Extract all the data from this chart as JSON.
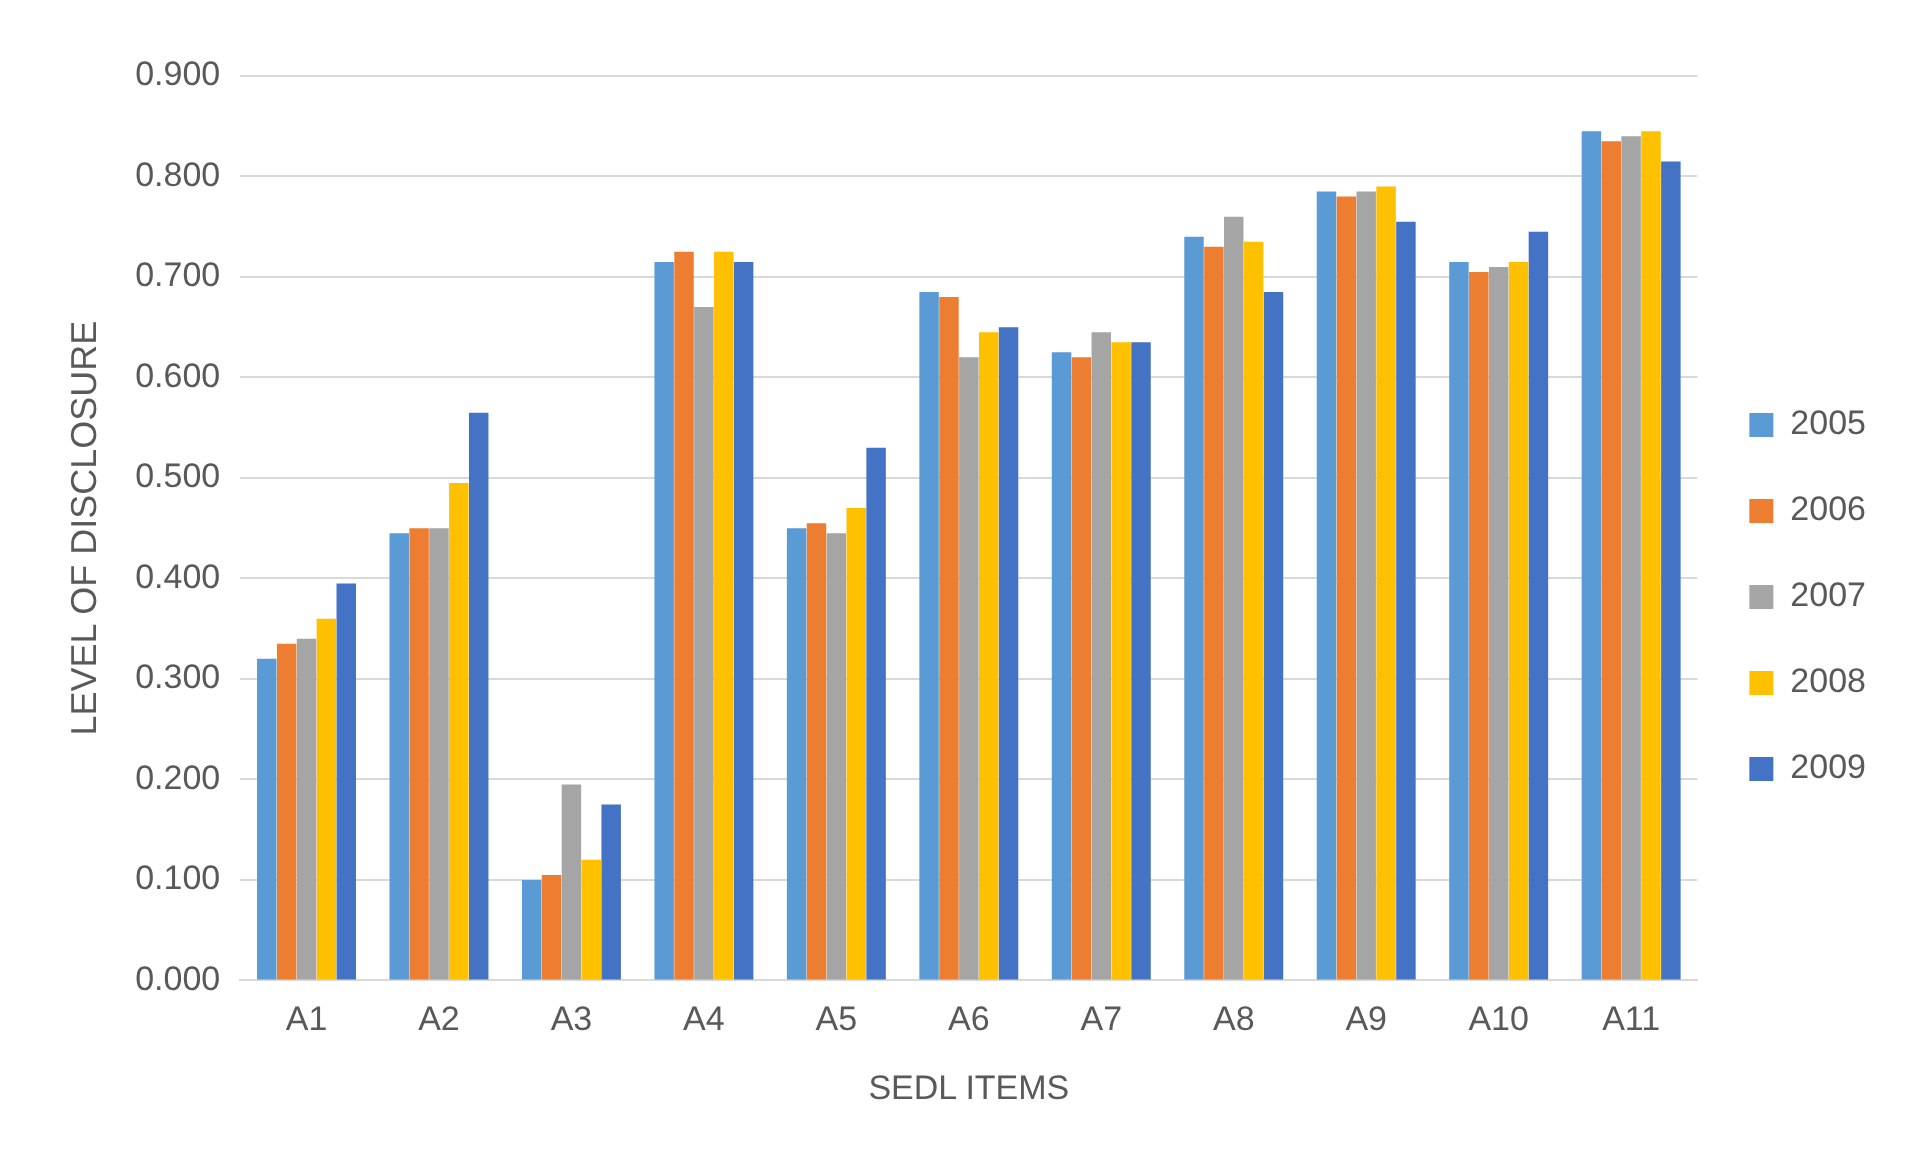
{
  "chart_data": {
    "type": "bar",
    "xlabel": "SEDL ITEMS",
    "ylabel": "LEVEL OF DISCLOSURE",
    "categories": [
      "A1",
      "A2",
      "A3",
      "A4",
      "A5",
      "A6",
      "A7",
      "A8",
      "A9",
      "A10",
      "A11"
    ],
    "series": [
      {
        "name": "2005",
        "color": "#5b9bd5",
        "values": [
          0.32,
          0.445,
          0.1,
          0.715,
          0.45,
          0.685,
          0.625,
          0.74,
          0.785,
          0.715,
          0.845
        ]
      },
      {
        "name": "2006",
        "color": "#ed7d31",
        "values": [
          0.335,
          0.45,
          0.105,
          0.725,
          0.455,
          0.68,
          0.62,
          0.73,
          0.78,
          0.705,
          0.835
        ]
      },
      {
        "name": "2007",
        "color": "#a5a5a5",
        "values": [
          0.34,
          0.45,
          0.195,
          0.67,
          0.445,
          0.62,
          0.645,
          0.76,
          0.785,
          0.71,
          0.84
        ]
      },
      {
        "name": "2008",
        "color": "#ffc000",
        "values": [
          0.36,
          0.495,
          0.12,
          0.725,
          0.47,
          0.645,
          0.635,
          0.735,
          0.79,
          0.715,
          0.845
        ]
      },
      {
        "name": "2009",
        "color": "#4472c4",
        "values": [
          0.395,
          0.565,
          0.175,
          0.715,
          0.53,
          0.65,
          0.635,
          0.685,
          0.755,
          0.745,
          0.815
        ]
      }
    ],
    "ylim": [
      0,
      0.9
    ],
    "yticks": [
      {
        "value": 0,
        "label": "0.000"
      },
      {
        "value": 0.1,
        "label": "0.100"
      },
      {
        "value": 0.2,
        "label": "0.200"
      },
      {
        "value": 0.3,
        "label": "0.300"
      },
      {
        "value": 0.4,
        "label": "0.400"
      },
      {
        "value": 0.5,
        "label": "0.500"
      },
      {
        "value": 0.6,
        "label": "0.600"
      },
      {
        "value": 0.7,
        "label": "0.700"
      },
      {
        "value": 0.8,
        "label": "0.800"
      },
      {
        "value": 0.9,
        "label": "0.900"
      }
    ],
    "grid": "y",
    "legend": "right"
  }
}
